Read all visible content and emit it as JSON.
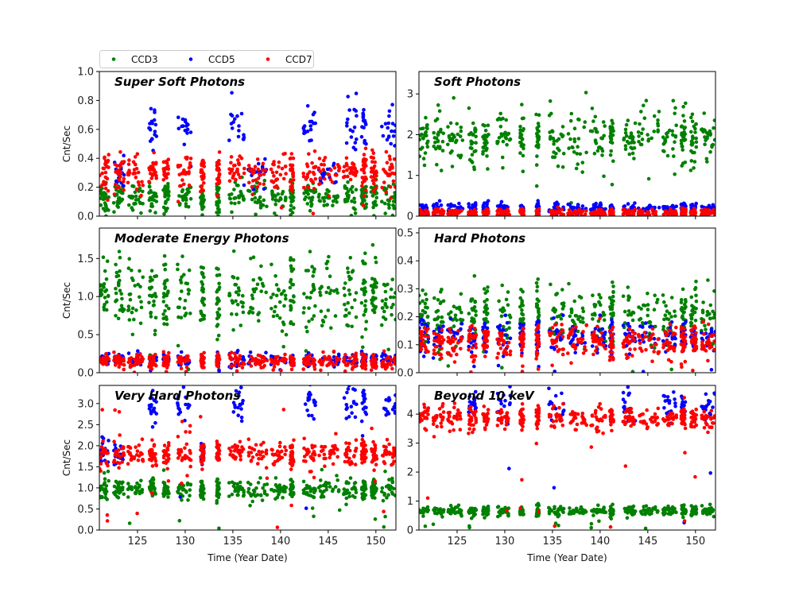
{
  "chart_data": {
    "type": "scatter",
    "xlabel": "Time (Year Date)",
    "ylabel": "Cnt/Sec",
    "xlim": [
      121,
      152.1
    ],
    "xticks": [
      125,
      130,
      135,
      140,
      145,
      150
    ],
    "legend": {
      "placement": "top-left, above plots",
      "entries": [
        "CCD3",
        "CCD5",
        "CCD7"
      ]
    },
    "series_colors": {
      "CCD3": "#008000",
      "CCD5": "#0000ff",
      "CCD7": "#ff0000"
    },
    "observation_segments": [
      [
        121,
        122
      ],
      [
        122.5,
        123.6
      ],
      [
        124,
        125.6
      ],
      [
        126.2,
        127
      ],
      [
        127.7,
        128.3
      ],
      [
        129.2,
        130.6
      ],
      [
        131.6,
        132
      ],
      [
        133.3,
        133.6
      ],
      [
        134.6,
        136.2
      ],
      [
        136.6,
        138.6
      ],
      [
        139,
        140.6
      ],
      [
        141,
        141.4
      ],
      [
        142.4,
        143.7
      ],
      [
        144,
        146.2
      ],
      [
        146.6,
        148
      ],
      [
        148.5,
        149
      ],
      [
        149.5,
        150.1
      ],
      [
        150.6,
        152.1
      ]
    ],
    "panels": [
      {
        "title": "Super Soft Photons",
        "ylim": [
          0,
          1.0
        ],
        "yticks": [
          "0.0",
          "0.2",
          "0.4",
          "0.6",
          "0.8",
          "1.0"
        ],
        "yvals": [
          0,
          0.2,
          0.4,
          0.6,
          0.8,
          1.0
        ],
        "levels": {
          "CCD3": [
            0.13,
            0.05
          ],
          "CCD5": [
            0.3,
            0.05
          ],
          "CCD7": [
            0.3,
            0.06
          ]
        },
        "ccd5_high": [
          0.6,
          0.08
        ]
      },
      {
        "title": "Soft Photons",
        "ylim": [
          0,
          3.55
        ],
        "yticks": [
          "0",
          "1",
          "2",
          "3"
        ],
        "yvals": [
          0,
          1,
          2,
          3
        ],
        "levels": {
          "CCD3": [
            1.9,
            0.3
          ],
          "CCD5": [
            0.2,
            0.07
          ],
          "CCD7": [
            0.08,
            0.05
          ]
        },
        "ccd5_high": null
      },
      {
        "title": "Moderate Energy Photons",
        "ylim": [
          0,
          1.9
        ],
        "yticks": [
          "0.0",
          "0.5",
          "1.0",
          "1.5"
        ],
        "yvals": [
          0,
          0.5,
          1.0,
          1.5
        ],
        "levels": {
          "CCD3": [
            1.0,
            0.25
          ],
          "CCD5": [
            0.17,
            0.04
          ],
          "CCD7": [
            0.15,
            0.05
          ]
        },
        "ccd5_high": null
      },
      {
        "title": "Hard Photons",
        "ylim": [
          0,
          0.517
        ],
        "yticks": [
          "0.0",
          "0.1",
          "0.2",
          "0.3",
          "0.4",
          "0.5"
        ],
        "yvals": [
          0,
          0.1,
          0.2,
          0.3,
          0.4,
          0.5
        ],
        "levels": {
          "CCD3": [
            0.2,
            0.05
          ],
          "CCD5": [
            0.13,
            0.03
          ],
          "CCD7": [
            0.11,
            0.03
          ]
        },
        "ccd5_high": null
      },
      {
        "title": "Very Hard Photons",
        "ylim": [
          0,
          3.43
        ],
        "yticks": [
          "0.0",
          "0.5",
          "1.0",
          "1.5",
          "2.0",
          "2.5",
          "3.0"
        ],
        "yvals": [
          0,
          0.5,
          1.0,
          1.5,
          2.0,
          2.5,
          3.0
        ],
        "levels": {
          "CCD3": [
            0.95,
            0.12
          ],
          "CCD5": [
            1.8,
            0.15
          ],
          "CCD7": [
            1.8,
            0.15
          ]
        },
        "ccd5_high": [
          3.0,
          0.2
        ]
      },
      {
        "title": "Beyond 10 keV",
        "ylim": [
          0,
          4.99
        ],
        "yticks": [
          "0",
          "1",
          "2",
          "3",
          "4"
        ],
        "yvals": [
          0,
          1,
          2,
          3,
          4
        ],
        "levels": {
          "CCD3": [
            0.65,
            0.08
          ],
          "CCD5": [
            3.85,
            0.2
          ],
          "CCD7": [
            3.85,
            0.2
          ]
        },
        "ccd5_high": [
          4.3,
          0.3
        ]
      }
    ],
    "ccd5_high_segments": [
      3,
      5,
      8,
      12,
      14,
      15,
      17
    ]
  }
}
